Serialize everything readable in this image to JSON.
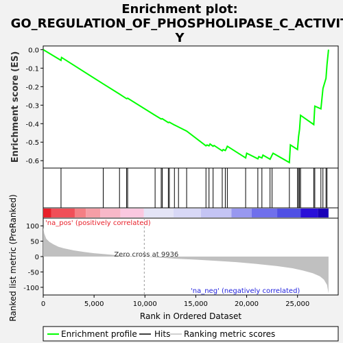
{
  "chart_data": [
    {
      "type": "line",
      "title_lines": [
        "Enrichment plot:",
        "GO_REGULATION_OF_PHOSPHOLIPASE_C_ACTIVIT",
        "Y"
      ],
      "ylabel": "Enrichment score (ES)",
      "xlim": [
        0,
        29000
      ],
      "ylim": [
        -0.64,
        0.02
      ],
      "yticks": [
        0.0,
        -0.1,
        -0.2,
        -0.3,
        -0.4,
        -0.5,
        -0.6
      ],
      "ytick_labels": [
        "0.0",
        "-0.1",
        "-0.2",
        "-0.3",
        "-0.4",
        "-0.5",
        "-0.6"
      ],
      "grid": false,
      "series": [
        {
          "name": "Enrichment profile",
          "color": "#00ff00",
          "x": [
            0,
            1750,
            1800,
            5900,
            7500,
            8200,
            8300,
            11000,
            11600,
            11700,
            12300,
            12400,
            12900,
            13300,
            14100,
            16000,
            16100,
            16300,
            16400,
            16700,
            16800,
            17600,
            17700,
            17900,
            18000,
            18100,
            19900,
            20000,
            21100,
            21200,
            21500,
            21600,
            22300,
            22500,
            22600,
            24200,
            24300,
            25000,
            25100,
            25200,
            25300,
            26600,
            26700,
            27300,
            27500,
            27800,
            27900,
            28050
          ],
          "y": [
            0.0,
            -0.058,
            -0.042,
            -0.185,
            -0.24,
            -0.265,
            -0.262,
            -0.355,
            -0.375,
            -0.373,
            -0.394,
            -0.392,
            -0.407,
            -0.418,
            -0.44,
            -0.52,
            -0.515,
            -0.52,
            -0.51,
            -0.522,
            -0.518,
            -0.547,
            -0.54,
            -0.545,
            -0.535,
            -0.522,
            -0.585,
            -0.56,
            -0.59,
            -0.578,
            -0.585,
            -0.57,
            -0.592,
            -0.57,
            -0.56,
            -0.61,
            -0.515,
            -0.54,
            -0.47,
            -0.43,
            -0.355,
            -0.405,
            -0.305,
            -0.32,
            -0.21,
            -0.155,
            -0.08,
            0.0
          ]
        }
      ]
    },
    {
      "type": "hits",
      "series_name": "Hits",
      "xlim": [
        0,
        29000
      ],
      "hit_positions": [
        1750,
        5900,
        7500,
        8200,
        8300,
        11000,
        11600,
        11700,
        12300,
        12400,
        12900,
        13300,
        14100,
        16000,
        16300,
        16700,
        17600,
        17900,
        18100,
        19900,
        21100,
        21500,
        22300,
        22500,
        24200,
        25000,
        25100,
        25200,
        25300,
        26600,
        26700,
        27300,
        27500,
        27800,
        27900
      ]
    },
    {
      "type": "heatmap",
      "name": "rank colorbar",
      "xlim": [
        0,
        29000
      ],
      "segments": [
        {
          "x0": 0,
          "x1": 800,
          "color": "#e8202a"
        },
        {
          "x0": 800,
          "x1": 3100,
          "color": "#f04f58"
        },
        {
          "x0": 3100,
          "x1": 4200,
          "color": "#f47f84"
        },
        {
          "x0": 4200,
          "x1": 5600,
          "color": "#f59ea6"
        },
        {
          "x0": 5600,
          "x1": 7600,
          "color": "#f7b8c8"
        },
        {
          "x0": 7600,
          "x1": 9900,
          "color": "#fac8e0"
        },
        {
          "x0": 9900,
          "x1": 12800,
          "color": "#e4e4f6"
        },
        {
          "x0": 12800,
          "x1": 15500,
          "color": "#d8d8f6"
        },
        {
          "x0": 15500,
          "x1": 18500,
          "color": "#c4c4f4"
        },
        {
          "x0": 18500,
          "x1": 20500,
          "color": "#9898f0"
        },
        {
          "x0": 20500,
          "x1": 23000,
          "color": "#7070ec"
        },
        {
          "x0": 23000,
          "x1": 25300,
          "color": "#5050e4"
        },
        {
          "x0": 25300,
          "x1": 27000,
          "color": "#2a10d8"
        },
        {
          "x0": 27000,
          "x1": 28050,
          "color": "#1a00b8"
        }
      ]
    },
    {
      "type": "area",
      "name": "ranked list metric",
      "xlabel": "Rank in Ordered Dataset",
      "ylabel": "Ranked list metric (PreRanked)",
      "xlim": [
        0,
        29000
      ],
      "ylim": [
        -125,
        125
      ],
      "xticks": [
        0,
        5000,
        10000,
        15000,
        20000,
        25000
      ],
      "xtick_labels": [
        "0",
        "5,000",
        "10,000",
        "15,000",
        "20,000",
        "25,000"
      ],
      "yticks": [
        100,
        50,
        0,
        -50,
        -100
      ],
      "ytick_labels": [
        "100",
        "50",
        "0",
        "-50",
        "-100"
      ],
      "fill_color": "#c0c0c0",
      "x": [
        0,
        100,
        300,
        600,
        1000,
        1500,
        2000,
        3000,
        4000,
        5000,
        6000,
        7000,
        8000,
        9000,
        9936,
        11000,
        13000,
        15000,
        17000,
        19000,
        21000,
        23000,
        24500,
        25500,
        26500,
        27200,
        27600,
        27900,
        28050
      ],
      "values": [
        95,
        75,
        58,
        48,
        40,
        32,
        27,
        20,
        15,
        11,
        8,
        5,
        3,
        1.5,
        0,
        -3,
        -7,
        -10,
        -14,
        -18,
        -24,
        -31,
        -38,
        -45,
        -54,
        -64,
        -75,
        -92,
        -120
      ],
      "zero_cross_label": "Zero cross at 9936",
      "zero_cross_x": 9936,
      "pos_label": "'na_pos' (positively correlated)",
      "neg_label": "'na_neg' (negatively correlated)",
      "pos_label_color": "#e8202a",
      "neg_label_color": "#2222dd"
    }
  ],
  "legend": {
    "items": [
      {
        "label": "Enrichment profile",
        "color": "#00ff00"
      },
      {
        "label": "Hits",
        "color": "#000000"
      },
      {
        "label": "Ranking metric scores",
        "color": "#c0c0c0"
      }
    ]
  }
}
